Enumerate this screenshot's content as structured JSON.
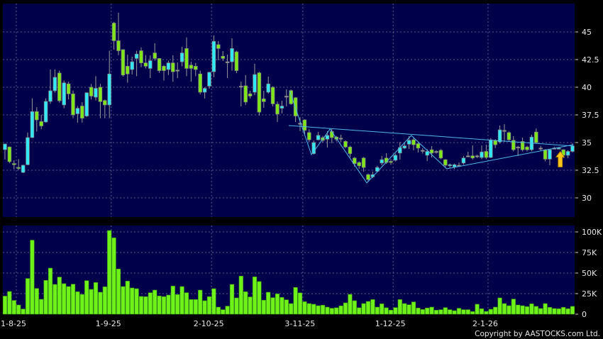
{
  "chart_data": [
    {
      "type": "candlestick",
      "panel": "price",
      "ylim": [
        28.3,
        47.6
      ],
      "y_ticks": [
        {
          "value": 30,
          "label": "30"
        },
        {
          "value": 32.5,
          "label": "32.5"
        },
        {
          "value": 35,
          "label": "35"
        },
        {
          "value": 37.5,
          "label": "37.5"
        },
        {
          "value": 40,
          "label": "40"
        },
        {
          "value": 42.5,
          "label": "42.5"
        },
        {
          "value": 45,
          "label": "45"
        }
      ],
      "grid": true,
      "colors": {
        "up": "#33e8f5",
        "down": "#7ee619",
        "unchanged": "#9a9a9a",
        "background": "#00004a",
        "trendline": "#4fb8e8",
        "signal_arrow": "#f5c518"
      },
      "ohlc_fields": [
        "open",
        "high",
        "low",
        "close"
      ],
      "candles": [
        [
          34.36,
          34.9,
          33.46,
          34.87
        ],
        [
          34.6,
          34.65,
          33.14,
          33.27
        ],
        [
          33.1,
          33.4,
          32.6,
          33.0
        ],
        [
          32.75,
          33.5,
          32.5,
          32.7
        ],
        [
          32.3,
          33.0,
          32.25,
          32.95
        ],
        [
          33.0,
          35.9,
          32.95,
          35.45
        ],
        [
          35.45,
          39.0,
          35.4,
          37.8
        ],
        [
          37.8,
          38.2,
          36.0,
          37.05
        ],
        [
          36.9,
          37.5,
          36.2,
          36.5
        ],
        [
          36.86,
          39.0,
          36.8,
          38.72
        ],
        [
          38.72,
          41.6,
          38.5,
          39.68
        ],
        [
          39.68,
          41.6,
          39.5,
          40.9
        ],
        [
          41.28,
          41.5,
          38.6,
          38.78
        ],
        [
          38.4,
          40.6,
          38.1,
          40.4
        ],
        [
          40.3,
          40.5,
          38.9,
          39.4
        ],
        [
          39.4,
          39.7,
          37.2,
          37.5
        ],
        [
          37.6,
          38.3,
          36.8,
          38.1
        ],
        [
          38.3,
          38.65,
          36.8,
          37.2
        ],
        [
          37.4,
          39.55,
          37.3,
          39.5
        ],
        [
          40.0,
          40.3,
          38.9,
          39.2
        ],
        [
          39.1,
          41.0,
          38.8,
          39.9
        ],
        [
          40.0,
          40.3,
          37.2,
          38.7
        ],
        [
          38.8,
          38.9,
          37.2,
          38.4
        ],
        [
          38.4,
          43.3,
          37.2,
          41.2
        ],
        [
          45.8,
          45.9,
          43.4,
          44.2
        ],
        [
          44.2,
          46.73,
          42.9,
          43.3
        ],
        [
          43.4,
          43.4,
          40.96,
          41.1
        ],
        [
          41.9,
          42.95,
          40.4,
          41.2
        ],
        [
          41.6,
          42.76,
          41.15,
          42.3
        ],
        [
          42.6,
          43.3,
          41.0,
          43.0
        ],
        [
          43.3,
          43.6,
          41.8,
          42.2
        ],
        [
          42.2,
          42.9,
          41.7,
          41.9
        ],
        [
          41.7,
          42.88,
          40.83,
          42.4
        ],
        [
          43.1,
          43.97,
          42.4,
          42.6
        ],
        [
          42.6,
          42.63,
          41.3,
          41.5
        ],
        [
          41.9,
          42.0,
          40.6,
          41.5
        ],
        [
          41.6,
          42.4,
          41.1,
          42.2
        ],
        [
          42.2,
          42.88,
          40.5,
          41.4
        ],
        [
          41.55,
          42.24,
          40.83,
          41.55
        ],
        [
          42.3,
          43.66,
          41.9,
          43.1
        ],
        [
          43.5,
          44.5,
          41.0,
          41.7
        ],
        [
          42.0,
          42.3,
          40.5,
          41.7
        ],
        [
          41.9,
          42.2,
          41.0,
          41.6
        ],
        [
          41.2,
          41.5,
          39.36,
          39.55
        ],
        [
          39.55,
          40.0,
          38.98,
          39.9
        ],
        [
          40.1,
          41.4,
          39.87,
          41.35
        ],
        [
          41.4,
          44.68,
          40.9,
          44.15
        ],
        [
          43.85,
          44.17,
          42.44,
          43.5
        ],
        [
          42.8,
          43.27,
          42.37,
          42.6
        ],
        [
          42.3,
          42.95,
          40.83,
          42.3
        ],
        [
          42.3,
          44.42,
          41.5,
          43.5
        ],
        [
          43.2,
          43.3,
          41.28,
          41.5
        ],
        [
          40.1,
          40.51,
          38.27,
          40.1
        ],
        [
          40.13,
          41.09,
          38.4,
          38.66
        ],
        [
          39.4,
          39.68,
          38.98,
          39.2
        ],
        [
          39.55,
          42.12,
          39.29,
          41.15
        ],
        [
          41.3,
          41.4,
          37.44,
          37.75
        ],
        [
          38.95,
          39.68,
          38.14,
          38.7
        ],
        [
          39.55,
          40.96,
          39.42,
          40.3
        ],
        [
          40.0,
          40.1,
          38.27,
          38.5
        ],
        [
          38.47,
          38.72,
          36.86,
          37.57
        ],
        [
          38.1,
          38.78,
          37.63,
          38.3
        ],
        [
          39.2,
          39.81,
          38.27,
          39.2
        ],
        [
          39.7,
          39.8,
          38.4,
          38.5
        ],
        [
          39.05,
          39.1,
          36.86,
          37.4
        ],
        [
          36.75,
          37.3,
          36.03,
          36.75
        ],
        [
          37.05,
          37.1,
          35.77,
          36.1
        ],
        [
          35.9,
          36.2,
          35.06,
          35.25
        ],
        [
          34.0,
          35.19,
          33.91,
          35.0
        ],
        [
          35.25,
          35.96,
          35.2,
          35.65
        ],
        [
          35.45,
          35.6,
          35.0,
          35.2
        ],
        [
          35.3,
          36.03,
          34.55,
          35.65
        ],
        [
          36.0,
          36.28,
          34.94,
          35.45
        ],
        [
          35.5,
          35.6,
          35.1,
          35.3
        ],
        [
          35.4,
          35.71,
          35.06,
          35.4
        ],
        [
          35.1,
          35.2,
          34.49,
          34.6
        ],
        [
          34.6,
          34.7,
          33.65,
          34.0
        ],
        [
          33.6,
          33.7,
          32.82,
          33.1
        ],
        [
          33.2,
          33.3,
          32.63,
          32.9
        ],
        [
          33.6,
          33.7,
          32.37,
          32.75
        ],
        [
          32.1,
          32.2,
          31.47,
          31.65
        ],
        [
          31.9,
          32.37,
          31.8,
          32.1
        ],
        [
          32.4,
          32.9,
          32.3,
          32.75
        ],
        [
          33.15,
          33.78,
          32.95,
          33.45
        ],
        [
          33.6,
          34.04,
          33.08,
          33.2
        ],
        [
          33.3,
          33.5,
          33.0,
          33.25
        ],
        [
          33.4,
          34.0,
          33.3,
          33.85
        ],
        [
          34.05,
          35.06,
          33.46,
          34.55
        ],
        [
          34.5,
          35.0,
          34.4,
          34.7
        ],
        [
          34.85,
          35.58,
          34.42,
          35.2
        ],
        [
          35.25,
          35.4,
          34.3,
          34.8
        ],
        [
          34.9,
          35.0,
          34.1,
          34.5
        ],
        [
          34.3,
          34.5,
          34.0,
          34.3
        ],
        [
          33.85,
          34.4,
          33.33,
          34.2
        ],
        [
          34.35,
          34.68,
          33.65,
          34.05
        ],
        [
          34.2,
          34.3,
          34.0,
          34.2
        ],
        [
          34.3,
          34.4,
          33.5,
          33.6
        ],
        [
          33.45,
          33.5,
          32.8,
          32.95
        ],
        [
          32.9,
          33.1,
          32.7,
          33.0
        ],
        [
          32.8,
          33.1,
          32.6,
          33.0
        ],
        [
          32.95,
          33.2,
          32.8,
          32.95
        ],
        [
          33.15,
          33.78,
          33.0,
          33.6
        ],
        [
          33.8,
          34.17,
          33.7,
          33.8
        ],
        [
          33.8,
          34.74,
          33.46,
          33.6
        ],
        [
          33.8,
          33.9,
          33.6,
          33.8
        ],
        [
          33.65,
          34.74,
          33.5,
          34.15
        ],
        [
          34.2,
          34.8,
          33.5,
          33.65
        ],
        [
          33.65,
          35.4,
          33.6,
          35.25
        ],
        [
          35.2,
          35.3,
          34.5,
          34.8
        ],
        [
          35.05,
          36.54,
          34.9,
          36.15
        ],
        [
          36.1,
          36.67,
          35.06,
          36.1
        ],
        [
          35.9,
          36.0,
          35.1,
          35.25
        ],
        [
          35.2,
          35.58,
          34.2,
          34.35
        ],
        [
          34.6,
          34.7,
          33.78,
          34.6
        ],
        [
          35.1,
          35.45,
          34.2,
          34.35
        ],
        [
          34.6,
          34.7,
          34.2,
          34.35
        ],
        [
          34.35,
          35.71,
          34.2,
          35.5
        ],
        [
          35.95,
          36.28,
          34.9,
          35.0
        ],
        [
          34.5,
          34.7,
          34.3,
          34.5
        ],
        [
          34.35,
          34.4,
          33.3,
          33.5
        ],
        [
          33.5,
          34.4,
          32.95,
          34.35
        ],
        [
          34.5,
          34.6,
          34.4,
          34.5
        ],
        [
          34.45,
          34.6,
          34.4,
          34.5
        ],
        [
          34.35,
          34.4,
          33.6,
          33.85
        ],
        [
          33.85,
          34.3,
          33.6,
          34.2
        ],
        [
          34.2,
          34.94,
          34.1,
          34.7
        ]
      ],
      "trendlines": [
        {
          "kind": "zigzag",
          "points": [
            [
              62.7,
              39.68
            ],
            [
              67.5,
              33.91
            ],
            [
              71.6,
              36.22
            ],
            [
              79.7,
              31.35
            ],
            [
              89.5,
              35.64
            ],
            [
              97.3,
              32.63
            ],
            [
              125.2,
              34.81
            ]
          ]
        },
        {
          "kind": "neckline",
          "points": [
            [
              62.5,
              36.54
            ],
            [
              125.2,
              34.68
            ]
          ]
        }
      ],
      "signal": {
        "type": "up-arrow",
        "candle_index": 122.3,
        "price": 34.2
      }
    },
    {
      "type": "bar",
      "panel": "volume",
      "ylim": [
        0,
        108
      ],
      "y_ticks": [
        {
          "value": 0,
          "label": "0"
        },
        {
          "value": 25,
          "label": "25K"
        },
        {
          "value": 50,
          "label": "50K"
        },
        {
          "value": 75,
          "label": "75K"
        },
        {
          "value": 100,
          "label": "100K"
        }
      ],
      "grid": true,
      "bar_color": "#6ff21a",
      "values": [
        22.0,
        27.6,
        16.7,
        11.2,
        6.3,
        43.4,
        90.0,
        31.3,
        18.1,
        41.1,
        56.0,
        36.2,
        45.1,
        37.1,
        33.6,
        36.5,
        27.3,
        24.1,
        40.8,
        30.2,
        38.5,
        26.7,
        33.3,
        101.7,
        92.8,
        54.9,
        33.6,
        40.2,
        31.9,
        31.0,
        21.6,
        21.3,
        26.1,
        29.3,
        22.1,
        21.3,
        23.3,
        34.2,
        23.9,
        33.6,
        26.1,
        17.8,
        17.8,
        29.3,
        16.4,
        21.3,
        31.0,
        8.6,
        5.5,
        9.8,
        36.2,
        19.8,
        46.3,
        27.3,
        21.0,
        45.4,
        39.7,
        17.0,
        26.7,
        20.1,
        24.7,
        20.4,
        17.5,
        12.9,
        32.5,
        25.9,
        15.2,
        12.9,
        12.1,
        10.3,
        10.9,
        8.6,
        7.2,
        7.8,
        10.1,
        13.8,
        24.1,
        16.4,
        7.8,
        12.9,
        15.5,
        17.8,
        8.6,
        12.6,
        7.8,
        4.9,
        8.0,
        17.8,
        12.9,
        11.5,
        14.9,
        7.5,
        5.7,
        7.5,
        8.6,
        4.9,
        5.5,
        8.0,
        5.5,
        4.3,
        7.2,
        5.5,
        5.5,
        3.2,
        12.1,
        6.6,
        3.4,
        6.0,
        8.6,
        19.8,
        12.9,
        10.3,
        18.4,
        11.2,
        10.3,
        9.2,
        12.6,
        9.5,
        6.9,
        12.9,
        8.3,
        6.9,
        6.6,
        8.3,
        6.6,
        9.5
      ]
    }
  ],
  "x_ticks": [
    {
      "label": "1-8-25",
      "candle": 2.5
    },
    {
      "label": "1-9-25",
      "candle": 23.4
    },
    {
      "label": "2-10-25",
      "candle": 45.5
    },
    {
      "label": "3-11-25",
      "candle": 65.6
    },
    {
      "label": "1-12-25",
      "candle": 85.5
    },
    {
      "label": "2-1-26",
      "candle": 106.4
    }
  ],
  "copyright": "Copyright by AASTOCKS.com Ltd."
}
